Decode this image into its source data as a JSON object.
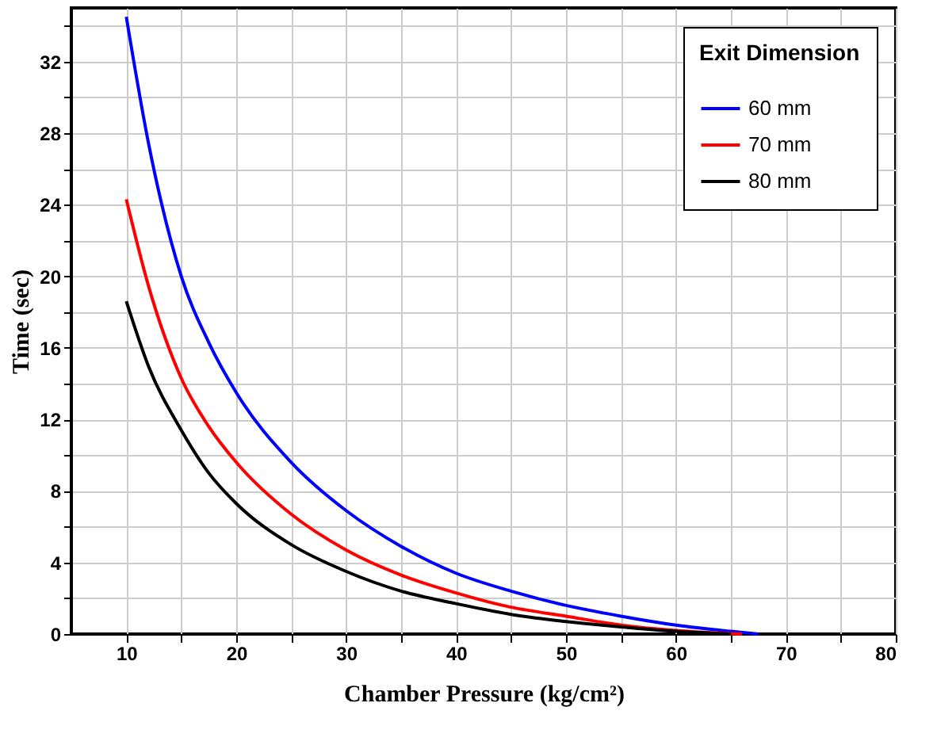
{
  "chart_data": {
    "type": "line",
    "xlabel": "Chamber Pressure (kg/cm²)",
    "ylabel": "Time (sec)",
    "legend_title": "Exit Dimension",
    "xlim": [
      5,
      80
    ],
    "ylim": [
      0,
      35
    ],
    "xticks": [
      10,
      {
        "value": 15,
        "label": null
      },
      20,
      {
        "value": 25,
        "label": null
      },
      30,
      {
        "value": 35,
        "label": null
      },
      40,
      {
        "value": 45,
        "label": null
      },
      50,
      {
        "value": 55,
        "label": null
      },
      60,
      {
        "value": 65,
        "label": null
      },
      70,
      {
        "value": 75,
        "label": null
      },
      80
    ],
    "yticks": [
      0,
      {
        "value": 2,
        "label": null
      },
      4,
      {
        "value": 6,
        "label": null
      },
      8,
      {
        "value": 10,
        "label": null
      },
      12,
      {
        "value": 14,
        "label": null
      },
      16,
      {
        "value": 18,
        "label": null
      },
      20,
      {
        "value": 22,
        "label": null
      },
      24,
      {
        "value": 26,
        "label": null
      },
      28,
      {
        "value": 30,
        "label": null
      },
      32,
      {
        "value": 34,
        "label": null
      }
    ],
    "grid": true,
    "legend": "top right",
    "series": [
      {
        "name": "60 mm",
        "color": "#0000ff",
        "x": [
          10,
          12,
          15,
          17.5,
          20,
          25,
          30,
          35,
          40,
          45,
          50,
          55,
          60,
          65,
          67.5
        ],
        "values": [
          34.5,
          27.5,
          20.0,
          16.3,
          13.5,
          9.6,
          6.9,
          4.9,
          3.4,
          2.4,
          1.6,
          1.0,
          0.5,
          0.15,
          0
        ]
      },
      {
        "name": "70 mm",
        "color": "#ff0000",
        "x": [
          10,
          12,
          15,
          17.5,
          20,
          25,
          30,
          35,
          40,
          45,
          50,
          55,
          60,
          66
        ],
        "values": [
          24.3,
          19.5,
          14.3,
          11.6,
          9.6,
          6.7,
          4.7,
          3.3,
          2.3,
          1.5,
          1.0,
          0.5,
          0.2,
          0
        ]
      },
      {
        "name": "80 mm",
        "color": "#000000",
        "x": [
          10,
          12,
          15,
          17.5,
          20,
          25,
          30,
          35,
          40,
          45,
          50,
          55,
          60,
          65
        ],
        "values": [
          18.6,
          15.0,
          11.4,
          9.0,
          7.3,
          5.0,
          3.5,
          2.4,
          1.7,
          1.1,
          0.7,
          0.4,
          0.15,
          0
        ]
      }
    ]
  }
}
